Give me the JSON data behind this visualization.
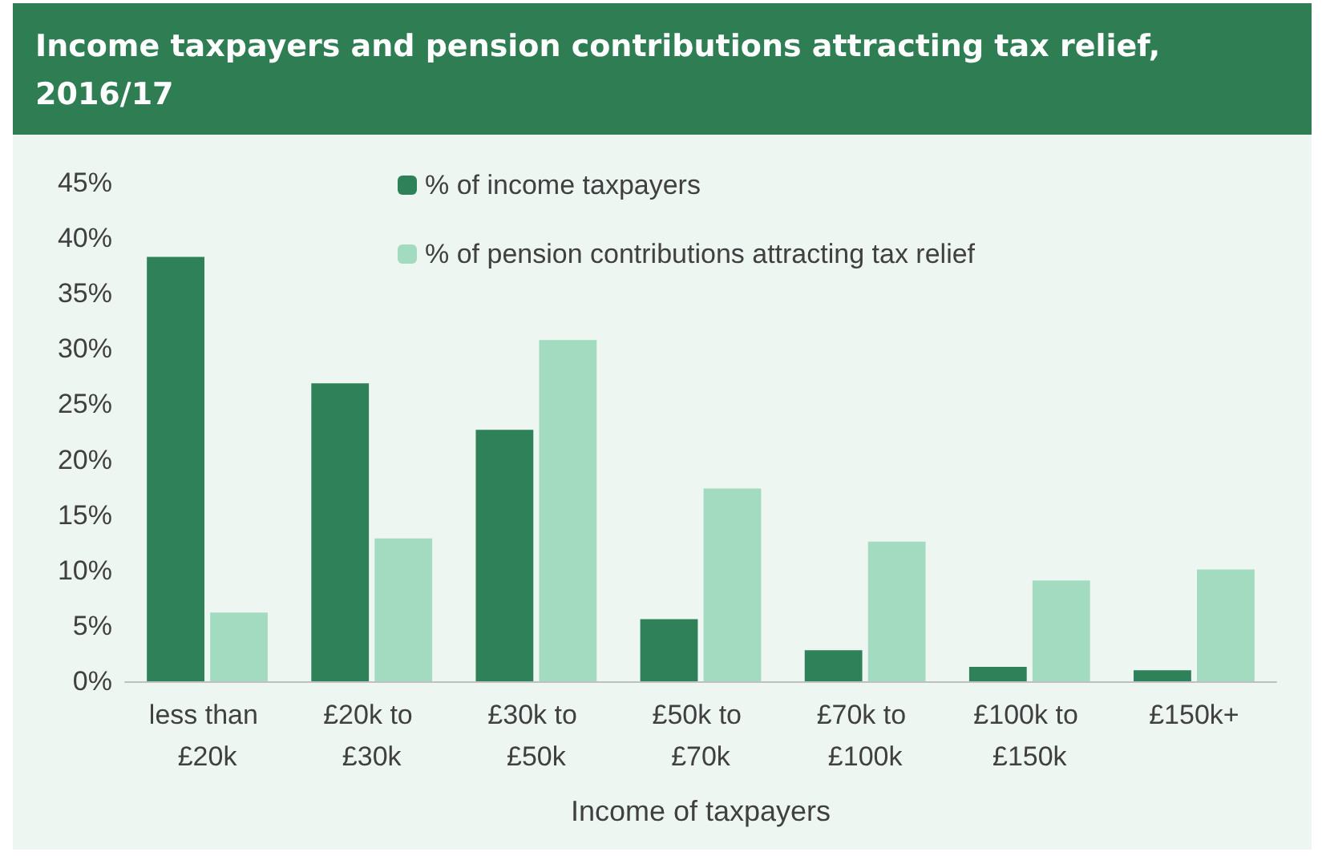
{
  "chart_data": {
    "type": "bar",
    "title": "Income taxpayers and pension contributions attracting tax relief, 2016/17",
    "xlabel": "Income of taxpayers",
    "categories": [
      "less than £20k",
      "£20k to £30k",
      "£30k to £50k",
      "£50k to £70k",
      "£70k to £100k",
      "£100k to £150k",
      "£150k+"
    ],
    "series": [
      {
        "name": "% of income taxpayers",
        "color": "#2e8159",
        "values": [
          38.3,
          26.9,
          22.7,
          5.6,
          2.8,
          1.3,
          1.0
        ]
      },
      {
        "name": "% of pension contributions attracting tax relief",
        "color": "#a3dbc0",
        "values": [
          6.2,
          12.9,
          30.8,
          17.4,
          12.6,
          9.1,
          10.1
        ]
      }
    ],
    "ylim": [
      0,
      45
    ],
    "yticks": [
      {
        "value": 0,
        "label": "0%"
      },
      {
        "value": 5,
        "label": "5%"
      },
      {
        "value": 10,
        "label": "10%"
      },
      {
        "value": 15,
        "label": "15%"
      },
      {
        "value": 20,
        "label": "20%"
      },
      {
        "value": 25,
        "label": "25%"
      },
      {
        "value": 30,
        "label": "30%"
      },
      {
        "value": 35,
        "label": "35%"
      },
      {
        "value": 40,
        "label": "40%"
      },
      {
        "value": 45,
        "label": "45%"
      }
    ],
    "grid": false,
    "legend": "top"
  }
}
